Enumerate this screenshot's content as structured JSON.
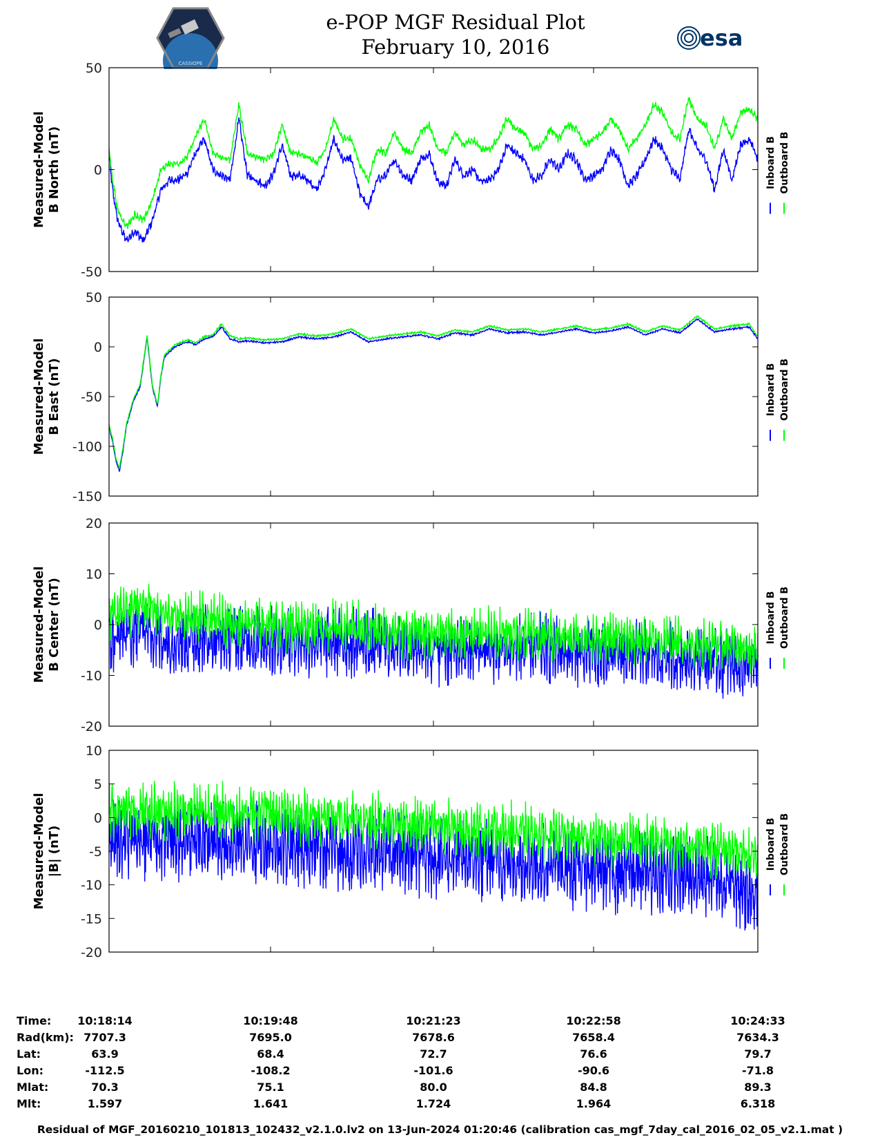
{
  "header": {
    "title_line1": "e-POP MGF Residual Plot",
    "title_line2": "February 10, 2016",
    "logo_left_text": "CASSIOPE",
    "logo_right_text": "esa"
  },
  "colors": {
    "inboard": "#0000ff",
    "outboard": "#00ff00",
    "axis": "#000000"
  },
  "chart_data": [
    {
      "type": "line",
      "title": "",
      "ylabel_line1": "Measured-Model",
      "ylabel_line2": "B North (nT)",
      "ylim": [
        -50,
        50
      ],
      "yticks": [
        -50,
        0,
        50
      ],
      "ytick_labels": [
        "-50",
        "0",
        "50"
      ],
      "xlim": [
        0,
        375
      ],
      "x_ticks_s": [
        0,
        94,
        189,
        284,
        379
      ],
      "legend": [
        "Inboard B",
        "Outboard B"
      ],
      "legend_position": "right",
      "series": [
        {
          "name": "Inboard B",
          "noise": 3,
          "x": [
            0,
            2,
            5,
            10,
            15,
            20,
            25,
            30,
            35,
            40,
            45,
            50,
            55,
            60,
            65,
            70,
            75,
            80,
            85,
            90,
            95,
            100,
            105,
            110,
            115,
            120,
            125,
            130,
            135,
            140,
            145,
            150,
            155,
            160,
            165,
            170,
            175,
            180,
            185,
            190,
            195,
            200,
            205,
            210,
            215,
            220,
            225,
            230,
            235,
            240,
            245,
            250,
            255,
            260,
            265,
            270,
            275,
            280,
            285,
            290,
            295,
            300,
            305,
            310,
            315,
            320,
            325,
            330,
            335,
            340,
            345,
            350,
            355,
            360,
            365,
            370,
            375
          ],
          "values": [
            8,
            -10,
            -25,
            -35,
            -30,
            -35,
            -25,
            -10,
            -5,
            -5,
            -2,
            8,
            15,
            0,
            -3,
            -5,
            25,
            -3,
            -5,
            -8,
            -2,
            12,
            -3,
            -3,
            -5,
            -10,
            0,
            15,
            5,
            5,
            -12,
            -18,
            -5,
            -3,
            5,
            -3,
            -5,
            5,
            8,
            -6,
            -8,
            5,
            -3,
            0,
            -6,
            -5,
            0,
            12,
            8,
            5,
            -5,
            -3,
            5,
            0,
            8,
            5,
            -5,
            -3,
            0,
            10,
            5,
            -8,
            -3,
            5,
            15,
            10,
            0,
            -5,
            20,
            10,
            5,
            -10,
            10,
            -5,
            12,
            15,
            5
          ]
        },
        {
          "name": "Outboard B",
          "noise": 2.5,
          "x": [
            0,
            2,
            5,
            10,
            15,
            20,
            25,
            30,
            35,
            40,
            45,
            50,
            55,
            60,
            65,
            70,
            75,
            80,
            85,
            90,
            95,
            100,
            105,
            110,
            115,
            120,
            125,
            130,
            135,
            140,
            145,
            150,
            155,
            160,
            165,
            170,
            175,
            180,
            185,
            190,
            195,
            200,
            205,
            210,
            215,
            220,
            225,
            230,
            235,
            240,
            245,
            250,
            255,
            260,
            265,
            270,
            275,
            280,
            285,
            290,
            295,
            300,
            305,
            310,
            315,
            320,
            325,
            330,
            335,
            340,
            345,
            350,
            355,
            360,
            365,
            370,
            375
          ],
          "values": [
            10,
            -5,
            -20,
            -28,
            -22,
            -25,
            -15,
            0,
            3,
            3,
            6,
            16,
            25,
            8,
            6,
            5,
            32,
            8,
            6,
            5,
            8,
            22,
            8,
            8,
            6,
            3,
            10,
            25,
            15,
            15,
            2,
            -5,
            10,
            8,
            18,
            10,
            8,
            18,
            22,
            10,
            8,
            18,
            12,
            15,
            10,
            10,
            15,
            25,
            20,
            18,
            10,
            12,
            20,
            15,
            22,
            20,
            12,
            15,
            18,
            25,
            20,
            10,
            15,
            22,
            32,
            28,
            18,
            15,
            35,
            25,
            22,
            10,
            25,
            15,
            28,
            30,
            25
          ]
        }
      ]
    },
    {
      "type": "line",
      "title": "",
      "ylabel_line1": "Measured-Model",
      "ylabel_line2": "B East (nT)",
      "ylim": [
        -150,
        50
      ],
      "yticks": [
        -150,
        -100,
        -50,
        0,
        50
      ],
      "ytick_labels": [
        "-150",
        "-100",
        "-50",
        "0",
        "50"
      ],
      "xlim": [
        0,
        375
      ],
      "x_ticks_s": [
        0,
        94,
        189,
        284,
        379
      ],
      "legend": [
        "Inboard B",
        "Outboard B"
      ],
      "legend_position": "right",
      "series": [
        {
          "name": "Inboard B",
          "noise": 1.2,
          "x": [
            0,
            2,
            4,
            6,
            8,
            10,
            14,
            18,
            22,
            25,
            28,
            30,
            32,
            35,
            38,
            42,
            46,
            50,
            55,
            60,
            65,
            70,
            75,
            80,
            90,
            100,
            110,
            120,
            130,
            140,
            150,
            160,
            170,
            180,
            190,
            200,
            210,
            220,
            230,
            240,
            250,
            260,
            270,
            280,
            290,
            300,
            310,
            320,
            330,
            340,
            350,
            360,
            370,
            375
          ],
          "values": [
            -80,
            -95,
            -115,
            -125,
            -105,
            -80,
            -55,
            -40,
            10,
            -40,
            -60,
            -30,
            -10,
            -5,
            0,
            3,
            5,
            2,
            8,
            10,
            20,
            8,
            5,
            6,
            4,
            5,
            10,
            8,
            10,
            15,
            5,
            8,
            10,
            12,
            8,
            14,
            12,
            18,
            14,
            15,
            12,
            15,
            18,
            14,
            16,
            20,
            12,
            18,
            14,
            28,
            15,
            18,
            20,
            8
          ]
        },
        {
          "name": "Outboard B",
          "noise": 1.2,
          "x": [
            0,
            2,
            4,
            6,
            8,
            10,
            14,
            18,
            22,
            25,
            28,
            30,
            32,
            35,
            38,
            42,
            46,
            50,
            55,
            60,
            65,
            70,
            75,
            80,
            90,
            100,
            110,
            120,
            130,
            140,
            150,
            160,
            170,
            180,
            190,
            200,
            210,
            220,
            230,
            240,
            250,
            260,
            270,
            280,
            290,
            300,
            310,
            320,
            330,
            340,
            350,
            360,
            370,
            375
          ],
          "values": [
            -78,
            -92,
            -112,
            -122,
            -102,
            -78,
            -53,
            -38,
            12,
            -38,
            -58,
            -28,
            -8,
            -3,
            2,
            5,
            7,
            4,
            10,
            12,
            23,
            11,
            8,
            9,
            7,
            8,
            13,
            11,
            13,
            18,
            8,
            11,
            13,
            15,
            11,
            17,
            15,
            21,
            17,
            18,
            15,
            18,
            21,
            17,
            19,
            23,
            15,
            21,
            17,
            31,
            18,
            21,
            23,
            10
          ]
        }
      ]
    },
    {
      "type": "line",
      "title": "",
      "ylabel_line1": "Measured-Model",
      "ylabel_line2": "B Center (nT)",
      "ylim": [
        -20,
        20
      ],
      "yticks": [
        -20,
        -10,
        0,
        10,
        20
      ],
      "ytick_labels": [
        "-20",
        "-10",
        "0",
        "10",
        "20"
      ],
      "xlim": [
        0,
        375
      ],
      "x_ticks_s": [
        0,
        94,
        189,
        284,
        379
      ],
      "legend": [
        "Inboard B",
        "Outboard B"
      ],
      "legend_position": "right",
      "series": [
        {
          "name": "Inboard B",
          "noise": 9,
          "x": [
            0,
            10,
            20,
            30,
            50,
            100,
            150,
            200,
            250,
            300,
            350,
            375
          ],
          "values": [
            -3,
            -2,
            0,
            -3,
            -3,
            -3,
            -4,
            -5,
            -5,
            -6,
            -7,
            -8
          ]
        },
        {
          "name": "Outboard B",
          "noise": 6,
          "x": [
            0,
            10,
            20,
            30,
            50,
            100,
            150,
            200,
            250,
            300,
            350,
            375
          ],
          "values": [
            2,
            3,
            4,
            2,
            1,
            0,
            -1,
            -2,
            -2,
            -3,
            -4,
            -5
          ]
        }
      ]
    },
    {
      "type": "line",
      "title": "",
      "ylabel_line1": "Measured-Model",
      "ylabel_line2": "|B| (nT)",
      "ylim": [
        -20,
        10
      ],
      "yticks": [
        -20,
        -15,
        -10,
        -5,
        0,
        5,
        10
      ],
      "ytick_labels": [
        "-20",
        "-15",
        "-10",
        "-5",
        "0",
        "5",
        "10"
      ],
      "xlim": [
        0,
        375
      ],
      "x_ticks_s": [
        0,
        94,
        189,
        284,
        379
      ],
      "legend": [
        "Inboard B",
        "Outboard B"
      ],
      "legend_position": "right",
      "series": [
        {
          "name": "Inboard B",
          "noise": 8,
          "x": [
            0,
            50,
            100,
            150,
            200,
            250,
            300,
            350,
            375
          ],
          "values": [
            -3,
            -3.5,
            -4,
            -5,
            -6,
            -7,
            -8,
            -9,
            -11
          ]
        },
        {
          "name": "Outboard B",
          "noise": 5,
          "x": [
            0,
            50,
            100,
            150,
            200,
            250,
            300,
            350,
            375
          ],
          "values": [
            1,
            1,
            0.5,
            -0.5,
            -1.5,
            -2.5,
            -3.5,
            -4.5,
            -6
          ]
        }
      ]
    }
  ],
  "orbit_table": {
    "headers": [
      "Time:",
      "Rad(km):",
      "Lat:",
      "Lon:",
      "Mlat:",
      "Mlt:"
    ],
    "columns": [
      {
        "time": "10:18:14",
        "rad": "7707.3",
        "lat": "63.9",
        "lon": "-112.5",
        "mlat": "70.3",
        "mlt": "1.597"
      },
      {
        "time": "10:19:48",
        "rad": "7695.0",
        "lat": "68.4",
        "lon": "-108.2",
        "mlat": "75.1",
        "mlt": "1.641"
      },
      {
        "time": "10:21:23",
        "rad": "7678.6",
        "lat": "72.7",
        "lon": "-101.6",
        "mlat": "80.0",
        "mlt": "1.724"
      },
      {
        "time": "10:22:58",
        "rad": "7658.4",
        "lat": "76.6",
        "lon": "-90.6",
        "mlat": "84.8",
        "mlt": "1.964"
      },
      {
        "time": "10:24:33",
        "rad": "7634.3",
        "lat": "79.7",
        "lon": "-71.8",
        "mlat": "89.3",
        "mlt": "6.318"
      }
    ]
  },
  "footer": "Residual of MGF_20160210_101813_102432_v2.1.0.lv2 on 13-Jun-2024 01:20:46 (calibration cas_mgf_7day_cal_2016_02_05_v2.1.mat )"
}
